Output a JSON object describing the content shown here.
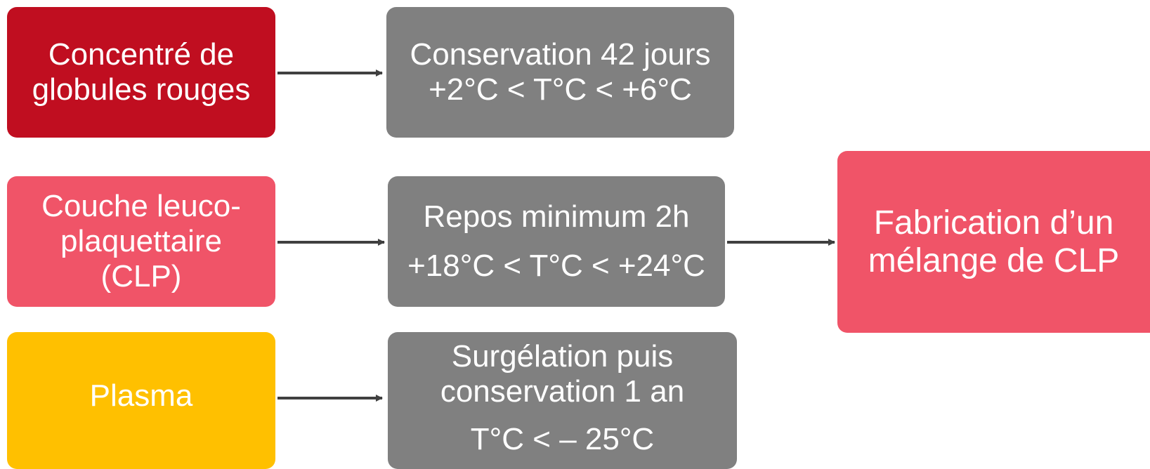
{
  "nodes": [
    {
      "lines": [
        "Concentré de",
        "globules rouges"
      ]
    },
    {
      "lines": [
        "Conservation 42 jours",
        "+2°C < T°C < +6°C"
      ]
    },
    {
      "lines": [
        "Couche leuco-",
        "plaquettaire",
        "(CLP)"
      ]
    },
    {
      "lines": [
        "Repos minimum 2h",
        "+18°C < T°C < +24°C"
      ]
    },
    {
      "lines": [
        "Fabrication d’un",
        "mélange de CLP"
      ]
    },
    {
      "lines": [
        "Plasma"
      ]
    },
    {
      "lines": [
        "Surgélation puis",
        "conservation 1 an",
        "T°C < – 25°C"
      ]
    }
  ]
}
